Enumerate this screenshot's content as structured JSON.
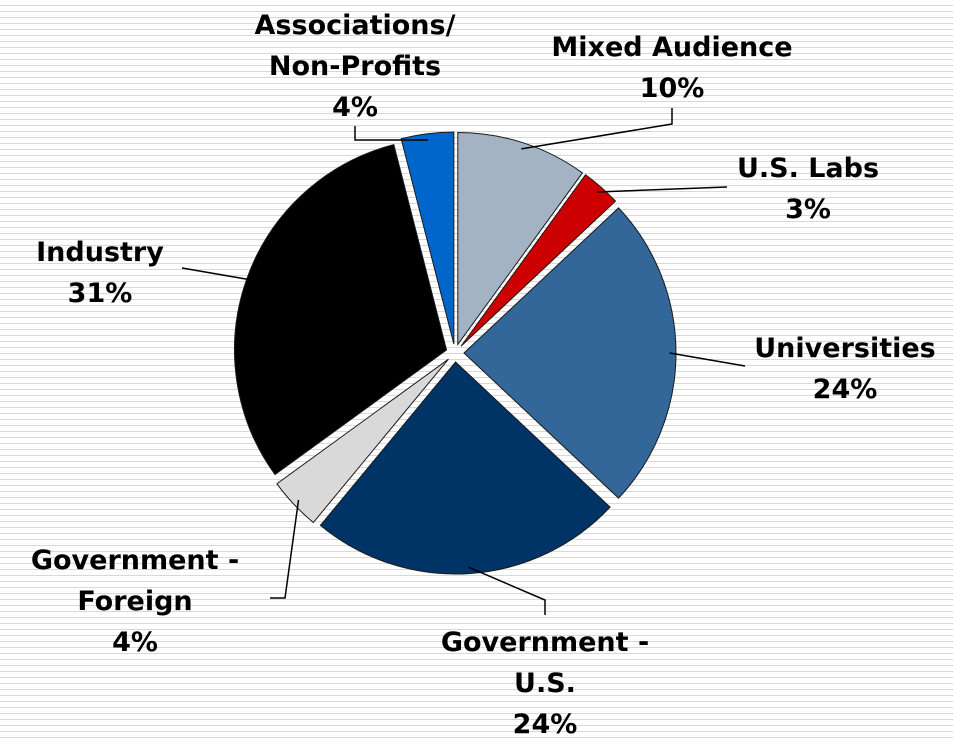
{
  "chart_data": {
    "type": "pie",
    "categories": [
      "Mixed Audience",
      "U.S. Labs",
      "Universities",
      "Government -\nU.S.",
      "Government -\nForeign",
      "Industry",
      "Associations/\nNon-Profits"
    ],
    "values": [
      10,
      3,
      24,
      24,
      4,
      31,
      4
    ],
    "value_labels": [
      "10%",
      "3%",
      "24%",
      "24%",
      "4%",
      "31%",
      "4%"
    ],
    "colors": [
      "#a3b3c3",
      "#cc0000",
      "#336699",
      "#003366",
      "#d9d9d9",
      "#000000",
      "#0066cc"
    ]
  }
}
